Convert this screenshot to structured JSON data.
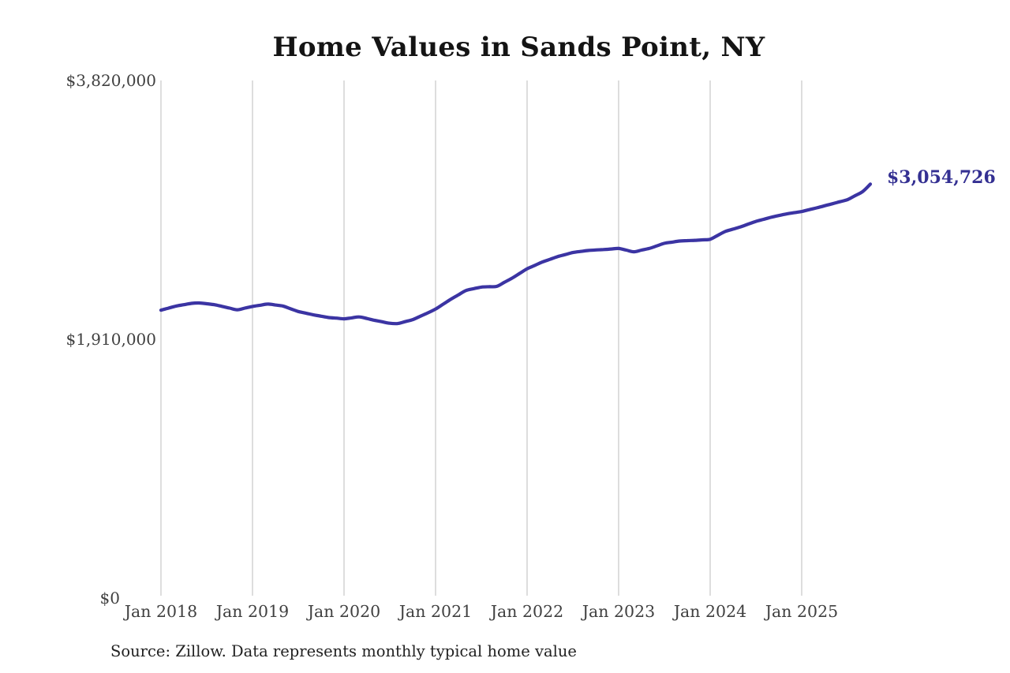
{
  "title": "Home Values in Sands Point, NY",
  "source_note": "Source: Zillow. Data represents monthly typical home value",
  "colors": {
    "line": "#3b34a3",
    "end_label_text": "#343092",
    "gridline": "#cbcbcb",
    "tick_text": "#404040",
    "title_text": "#141414",
    "source_text": "#222222",
    "background": "#ffffff"
  },
  "chart_data": {
    "type": "line",
    "title": "Home Values in Sands Point, NY",
    "grid": "vertical-yearly",
    "legend": "none",
    "ylim": [
      0,
      3820000
    ],
    "y_ticks": [
      {
        "value": 3820000,
        "label": "$3,820,000"
      },
      {
        "value": 1910000,
        "label": "$1,910,000"
      },
      {
        "value": 0,
        "label": "$0"
      }
    ],
    "x_tick_labels": [
      "Jan 2018",
      "Jan 2019",
      "Jan 2020",
      "Jan 2021",
      "Jan 2022",
      "Jan 2023",
      "Jan 2024",
      "Jan 2025"
    ],
    "last_point": {
      "month": "2025-10",
      "value": 3054726,
      "label": "$3,054,726"
    },
    "x": [
      "2018-01",
      "2018-02",
      "2018-03",
      "2018-04",
      "2018-05",
      "2018-06",
      "2018-07",
      "2018-08",
      "2018-09",
      "2018-10",
      "2018-11",
      "2018-12",
      "2019-01",
      "2019-02",
      "2019-03",
      "2019-04",
      "2019-05",
      "2019-06",
      "2019-07",
      "2019-08",
      "2019-09",
      "2019-10",
      "2019-11",
      "2019-12",
      "2020-01",
      "2020-02",
      "2020-03",
      "2020-04",
      "2020-05",
      "2020-06",
      "2020-07",
      "2020-08",
      "2020-09",
      "2020-10",
      "2020-11",
      "2020-12",
      "2021-01",
      "2021-02",
      "2021-03",
      "2021-04",
      "2021-05",
      "2021-06",
      "2021-07",
      "2021-08",
      "2021-09",
      "2021-10",
      "2021-11",
      "2021-12",
      "2022-01",
      "2022-02",
      "2022-03",
      "2022-04",
      "2022-05",
      "2022-06",
      "2022-07",
      "2022-08",
      "2022-09",
      "2022-10",
      "2022-11",
      "2022-12",
      "2023-01",
      "2023-02",
      "2023-03",
      "2023-04",
      "2023-05",
      "2023-06",
      "2023-07",
      "2023-08",
      "2023-09",
      "2023-10",
      "2023-11",
      "2023-12",
      "2024-01",
      "2024-02",
      "2024-03",
      "2024-04",
      "2024-05",
      "2024-06",
      "2024-07",
      "2024-08",
      "2024-09",
      "2024-10",
      "2024-11",
      "2024-12",
      "2025-01",
      "2025-02",
      "2025-03",
      "2025-04",
      "2025-05",
      "2025-06",
      "2025-07",
      "2025-08",
      "2025-09",
      "2025-10"
    ],
    "values": [
      2125000,
      2140000,
      2155000,
      2165000,
      2175000,
      2178000,
      2172000,
      2165000,
      2153000,
      2140000,
      2128000,
      2140000,
      2152000,
      2161000,
      2170000,
      2163000,
      2155000,
      2135000,
      2115000,
      2103000,
      2090000,
      2080000,
      2070000,
      2066000,
      2061000,
      2068000,
      2075000,
      2063000,
      2050000,
      2039000,
      2028000,
      2026000,
      2040000,
      2055000,
      2080000,
      2105000,
      2133000,
      2169000,
      2205000,
      2238000,
      2270000,
      2283000,
      2295000,
      2298000,
      2300000,
      2330000,
      2360000,
      2395000,
      2430000,
      2455000,
      2480000,
      2500000,
      2520000,
      2535000,
      2550000,
      2558000,
      2565000,
      2569000,
      2572000,
      2576000,
      2580000,
      2568000,
      2556000,
      2568000,
      2580000,
      2599000,
      2618000,
      2627000,
      2635000,
      2638000,
      2640000,
      2644000,
      2648000,
      2677000,
      2706000,
      2723000,
      2740000,
      2760000,
      2780000,
      2795000,
      2810000,
      2823000,
      2835000,
      2844000,
      2853000,
      2867000,
      2880000,
      2895000,
      2910000,
      2925000,
      2940000,
      2970000,
      3000000,
      3054726
    ]
  }
}
